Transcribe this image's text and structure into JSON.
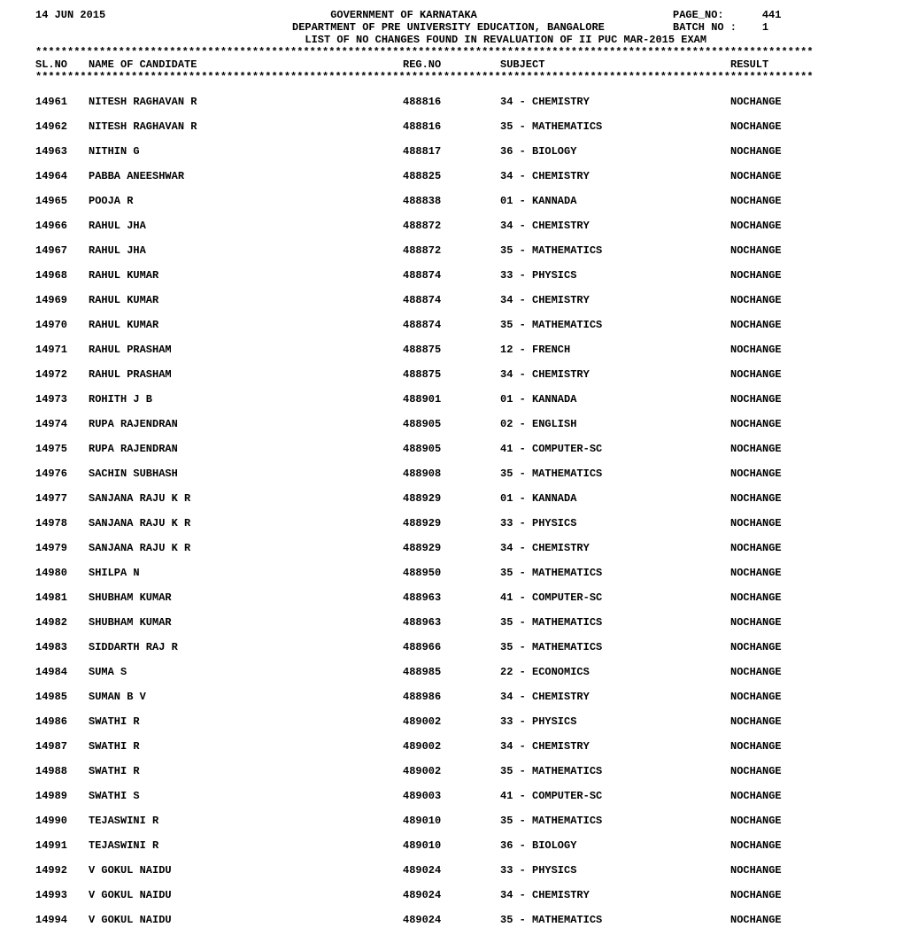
{
  "header": {
    "date": "14 JUN 2015",
    "title": "GOVERNMENT OF KARNATAKA",
    "page_no_label": "PAGE_NO:",
    "page_no": "441",
    "dept": "DEPARTMENT OF PRE UNIVERSITY EDUCATION, BANGALORE",
    "batch_label": "BATCH NO :",
    "batch_no": "1",
    "subtitle": "LIST OF NO CHANGES FOUND IN REVALUATION OF II PUC MAR-2015 EXAM"
  },
  "divider": "**************************************************************************************************************************",
  "columns": {
    "sl": "SL.NO",
    "name": "NAME OF CANDIDATE",
    "reg": "REG.NO",
    "subj": "SUBJECT",
    "result": "RESULT"
  },
  "rows": [
    {
      "sl": "14961",
      "name": "NITESH RAGHAVAN R",
      "reg": "488816",
      "subj": "34 - CHEMISTRY",
      "result": "NOCHANGE"
    },
    {
      "sl": "14962",
      "name": "NITESH RAGHAVAN R",
      "reg": "488816",
      "subj": "35 - MATHEMATICS",
      "result": "NOCHANGE"
    },
    {
      "sl": "14963",
      "name": "NITHIN G",
      "reg": "488817",
      "subj": "36 - BIOLOGY",
      "result": "NOCHANGE"
    },
    {
      "sl": "14964",
      "name": "PABBA ANEESHWAR",
      "reg": "488825",
      "subj": "34 - CHEMISTRY",
      "result": "NOCHANGE"
    },
    {
      "sl": "14965",
      "name": "POOJA R",
      "reg": "488838",
      "subj": "01 - KANNADA",
      "result": "NOCHANGE"
    },
    {
      "sl": "14966",
      "name": "RAHUL JHA",
      "reg": "488872",
      "subj": "34 - CHEMISTRY",
      "result": "NOCHANGE"
    },
    {
      "sl": "14967",
      "name": "RAHUL JHA",
      "reg": "488872",
      "subj": "35 - MATHEMATICS",
      "result": "NOCHANGE"
    },
    {
      "sl": "14968",
      "name": "RAHUL KUMAR",
      "reg": "488874",
      "subj": "33 - PHYSICS",
      "result": "NOCHANGE"
    },
    {
      "sl": "14969",
      "name": "RAHUL KUMAR",
      "reg": "488874",
      "subj": "34 - CHEMISTRY",
      "result": "NOCHANGE"
    },
    {
      "sl": "14970",
      "name": "RAHUL KUMAR",
      "reg": "488874",
      "subj": "35 - MATHEMATICS",
      "result": "NOCHANGE"
    },
    {
      "sl": "14971",
      "name": "RAHUL PRASHAM",
      "reg": "488875",
      "subj": "12 - FRENCH",
      "result": "NOCHANGE"
    },
    {
      "sl": "14972",
      "name": "RAHUL PRASHAM",
      "reg": "488875",
      "subj": "34 - CHEMISTRY",
      "result": "NOCHANGE"
    },
    {
      "sl": "14973",
      "name": "ROHITH J B",
      "reg": "488901",
      "subj": "01 - KANNADA",
      "result": "NOCHANGE"
    },
    {
      "sl": "14974",
      "name": "RUPA RAJENDRAN",
      "reg": "488905",
      "subj": "02 - ENGLISH",
      "result": "NOCHANGE"
    },
    {
      "sl": "14975",
      "name": "RUPA RAJENDRAN",
      "reg": "488905",
      "subj": "41 - COMPUTER-SC",
      "result": "NOCHANGE"
    },
    {
      "sl": "14976",
      "name": "SACHIN SUBHASH",
      "reg": "488908",
      "subj": "35 - MATHEMATICS",
      "result": "NOCHANGE"
    },
    {
      "sl": "14977",
      "name": "SANJANA RAJU K R",
      "reg": "488929",
      "subj": "01 - KANNADA",
      "result": "NOCHANGE"
    },
    {
      "sl": "14978",
      "name": "SANJANA RAJU K R",
      "reg": "488929",
      "subj": "33 - PHYSICS",
      "result": "NOCHANGE"
    },
    {
      "sl": "14979",
      "name": "SANJANA RAJU K R",
      "reg": "488929",
      "subj": "34 - CHEMISTRY",
      "result": "NOCHANGE"
    },
    {
      "sl": "14980",
      "name": "SHILPA N",
      "reg": "488950",
      "subj": "35 - MATHEMATICS",
      "result": "NOCHANGE"
    },
    {
      "sl": "14981",
      "name": "SHUBHAM KUMAR",
      "reg": "488963",
      "subj": "41 - COMPUTER-SC",
      "result": "NOCHANGE"
    },
    {
      "sl": "14982",
      "name": "SHUBHAM KUMAR",
      "reg": "488963",
      "subj": "35 - MATHEMATICS",
      "result": "NOCHANGE"
    },
    {
      "sl": "14983",
      "name": "SIDDARTH RAJ R",
      "reg": "488966",
      "subj": "35 - MATHEMATICS",
      "result": "NOCHANGE"
    },
    {
      "sl": "14984",
      "name": "SUMA S",
      "reg": "488985",
      "subj": "22 - ECONOMICS",
      "result": "NOCHANGE"
    },
    {
      "sl": "14985",
      "name": "SUMAN B V",
      "reg": "488986",
      "subj": "34 - CHEMISTRY",
      "result": "NOCHANGE"
    },
    {
      "sl": "14986",
      "name": "SWATHI R",
      "reg": "489002",
      "subj": "33 - PHYSICS",
      "result": "NOCHANGE"
    },
    {
      "sl": "14987",
      "name": "SWATHI R",
      "reg": "489002",
      "subj": "34 - CHEMISTRY",
      "result": "NOCHANGE"
    },
    {
      "sl": "14988",
      "name": "SWATHI R",
      "reg": "489002",
      "subj": "35 - MATHEMATICS",
      "result": "NOCHANGE"
    },
    {
      "sl": "14989",
      "name": "SWATHI S",
      "reg": "489003",
      "subj": "41 - COMPUTER-SC",
      "result": "NOCHANGE"
    },
    {
      "sl": "14990",
      "name": "TEJASWINI R",
      "reg": "489010",
      "subj": "35 - MATHEMATICS",
      "result": "NOCHANGE"
    },
    {
      "sl": "14991",
      "name": "TEJASWINI R",
      "reg": "489010",
      "subj": "36 - BIOLOGY",
      "result": "NOCHANGE"
    },
    {
      "sl": "14992",
      "name": "V GOKUL NAIDU",
      "reg": "489024",
      "subj": "33 - PHYSICS",
      "result": "NOCHANGE"
    },
    {
      "sl": "14993",
      "name": "V GOKUL NAIDU",
      "reg": "489024",
      "subj": "34 - CHEMISTRY",
      "result": "NOCHANGE"
    },
    {
      "sl": "14994",
      "name": "V GOKUL NAIDU",
      "reg": "489024",
      "subj": "35 - MATHEMATICS",
      "result": "NOCHANGE"
    }
  ]
}
